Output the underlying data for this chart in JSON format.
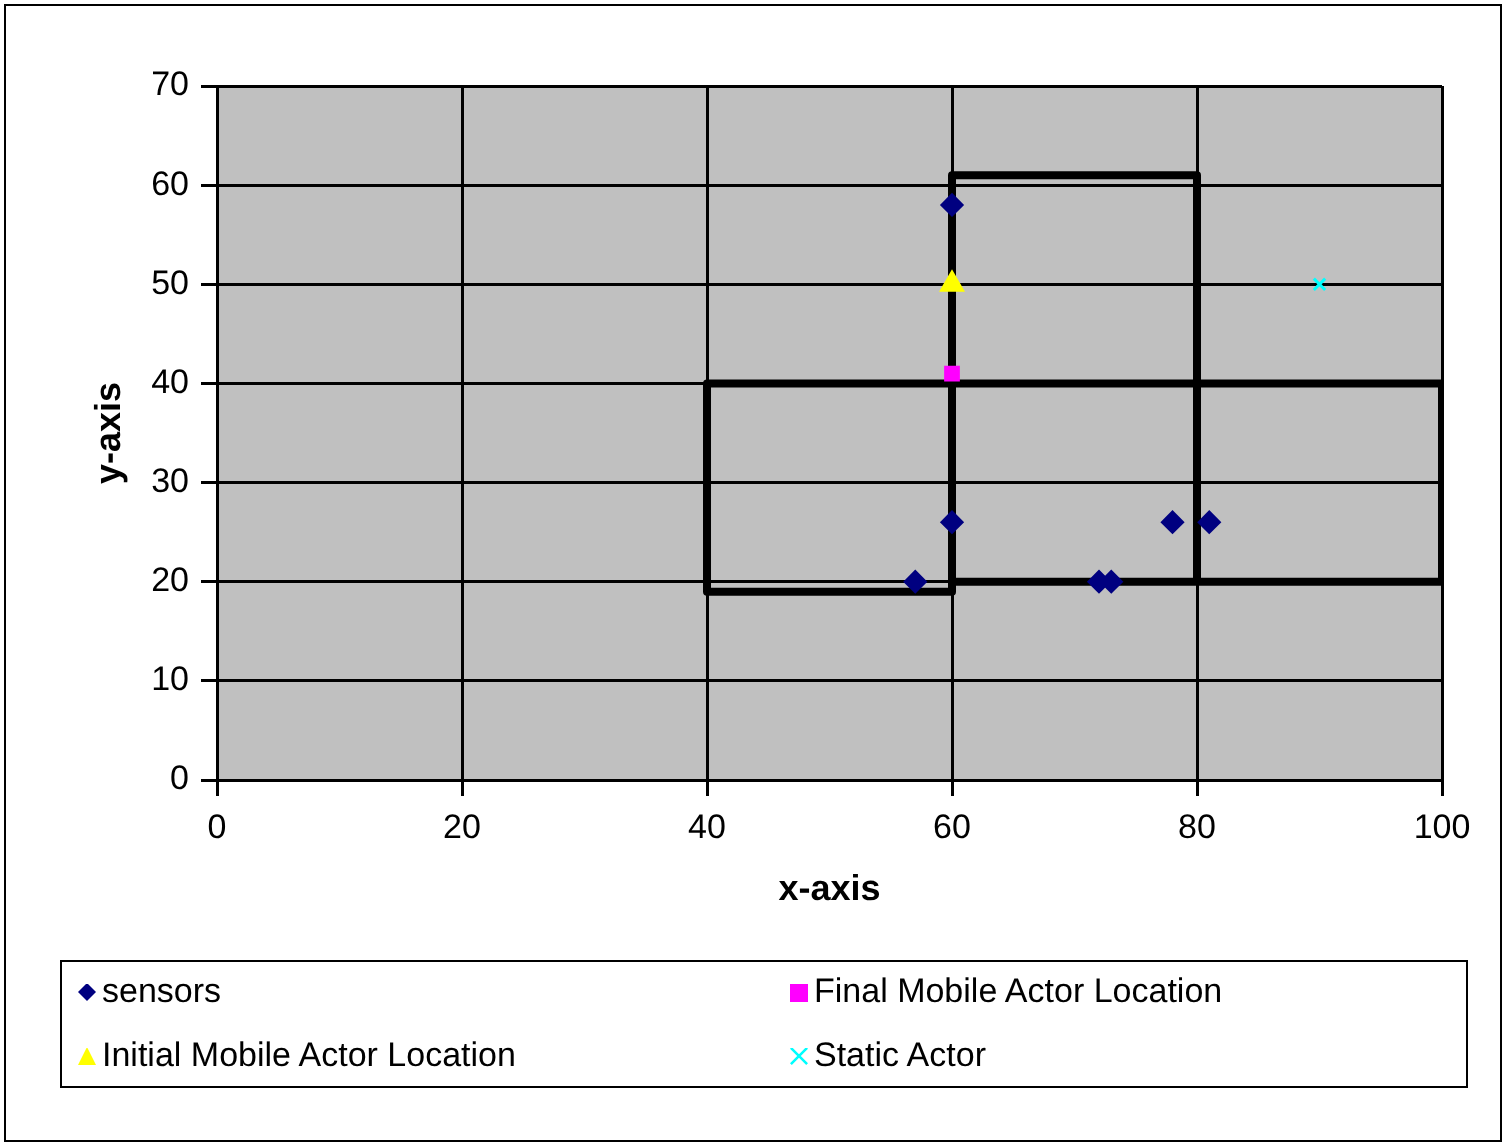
{
  "chart_data": {
    "type": "scatter",
    "xlabel": "x-axis",
    "ylabel": "y-axis",
    "xlim": [
      0,
      100
    ],
    "xticks": [
      0,
      20,
      40,
      60,
      80,
      100
    ],
    "ylim": [
      0,
      70
    ],
    "yticks": [
      0,
      10,
      20,
      30,
      40,
      50,
      60,
      70
    ],
    "grid": true,
    "legend": "bottom",
    "series": [
      {
        "name": "sensors",
        "color": "#000080",
        "marker": "diamond",
        "x": [
          60,
          57,
          60,
          72,
          73,
          78,
          81
        ],
        "values": [
          58,
          20,
          26,
          20,
          20,
          26,
          26
        ]
      },
      {
        "name": "Final Mobile Actor Location",
        "color": "#ff00ff",
        "marker": "square",
        "x": [
          60
        ],
        "values": [
          41
        ]
      },
      {
        "name": "Initial Mobile Actor Location",
        "color": "#ffff00",
        "marker": "triangle",
        "x": [
          60
        ],
        "values": [
          50
        ]
      },
      {
        "name": "Static Actor",
        "color": "#00ffff",
        "marker": "cross",
        "x": [
          90
        ],
        "values": [
          50
        ]
      },
      {
        "type": "line",
        "color": "#000000",
        "marker": "none",
        "x": [
          60,
          80,
          80,
          null,
          40,
          100,
          100,
          60,
          null,
          60,
          60,
          40,
          40
        ],
        "values": [
          61,
          61,
          20,
          null,
          40,
          40,
          20,
          20,
          null,
          61,
          19,
          19,
          40
        ]
      }
    ]
  }
}
